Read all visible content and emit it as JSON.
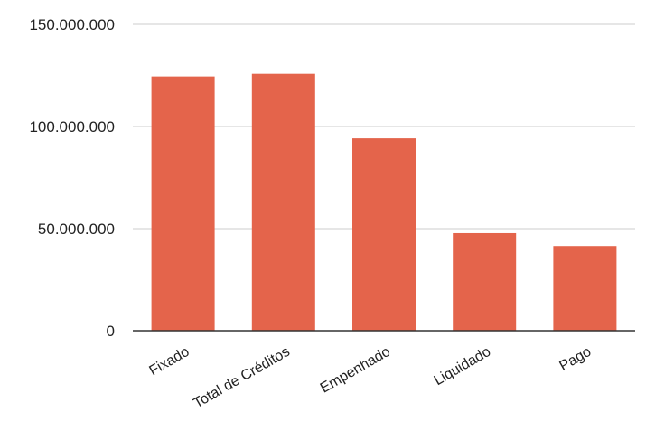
{
  "chart_data": {
    "type": "bar",
    "categories": [
      "Fixado",
      "Total de Créditos",
      "Empenhado",
      "Liquidado",
      "Pago"
    ],
    "values": [
      124500000,
      125800000,
      94200000,
      47800000,
      41500000
    ],
    "yticks": [
      {
        "value": 0,
        "label": "0"
      },
      {
        "value": 50000000,
        "label": "50.000.000"
      },
      {
        "value": 100000000,
        "label": "100.000.000"
      },
      {
        "value": 150000000,
        "label": "150.000.000"
      }
    ],
    "ylim": [
      0,
      150000000
    ],
    "grid": true,
    "legend": "none",
    "title": "",
    "xlabel": "",
    "ylabel": "",
    "colors": {
      "bar": "#e4644b",
      "grid": "#cccccc",
      "axis": "#333333"
    }
  }
}
